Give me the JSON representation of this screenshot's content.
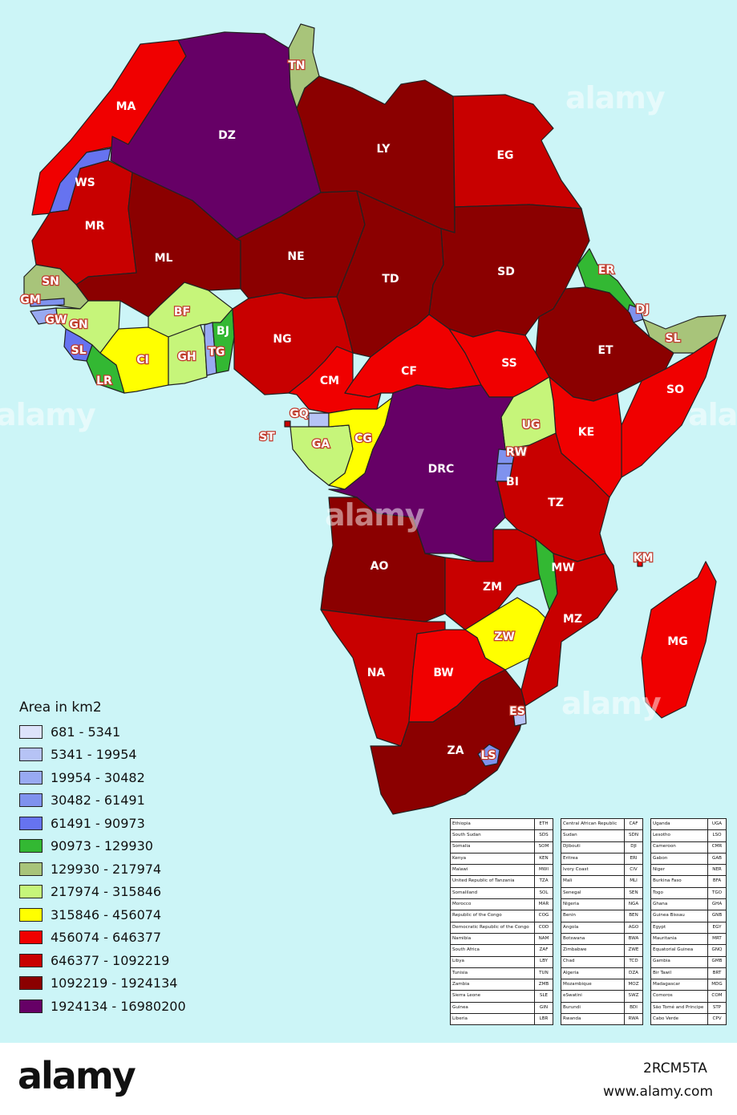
{
  "colors": {
    "sea": "#ccf5f7",
    "c1": "#dde3fb",
    "c2": "#b6c3f5",
    "c3": "#98aaf2",
    "c4": "#7f92ee",
    "c5": "#6673f0",
    "c6": "#33b833",
    "c7": "#a8c47a",
    "c8": "#c6f57a",
    "c9": "#ffff00",
    "c10": "#f00000",
    "c11": "#c80000",
    "c12": "#8b0000",
    "c13": "#660066"
  },
  "legend": {
    "title": "Area in km2",
    "classes": [
      {
        "label": "681 - 5341",
        "color": "#dde3fb"
      },
      {
        "label": "5341 - 19954",
        "color": "#b6c3f5"
      },
      {
        "label": "19954 - 30482",
        "color": "#98aaf2"
      },
      {
        "label": "30482 - 61491",
        "color": "#7f92ee"
      },
      {
        "label": "61491 - 90973",
        "color": "#6673f0"
      },
      {
        "label": "90973 - 129930",
        "color": "#33b833"
      },
      {
        "label": "129930 - 217974",
        "color": "#a8c47a"
      },
      {
        "label": "217974 - 315846",
        "color": "#c6f57a"
      },
      {
        "label": "315846 - 456074",
        "color": "#ffff00"
      },
      {
        "label": "456074 - 646377",
        "color": "#f00000"
      },
      {
        "label": "646377 - 1092219",
        "color": "#c80000"
      },
      {
        "label": "1092219 - 1924134",
        "color": "#8b0000"
      },
      {
        "label": "1924134 - 16980200",
        "color": "#660066"
      }
    ]
  },
  "country_labels": {
    "MA": "MA",
    "DZ": "DZ",
    "TN": "TN",
    "LY": "LY",
    "EG": "EG",
    "WS": "WS",
    "MR": "MR",
    "ML": "ML",
    "NE": "NE",
    "TD": "TD",
    "SD": "SD",
    "ER": "ER",
    "DJ": "DJ",
    "SN": "SN",
    "GM": "GM",
    "GW": "GW",
    "GN": "GN",
    "BF": "BF",
    "BJ": "BJ",
    "TG": "TG",
    "SL": "SL",
    "CI": "CI",
    "GH": "GH",
    "LR": "LR",
    "NG": "NG",
    "ET": "ET",
    "SLD": "SL",
    "SS": "SS",
    "CF": "CF",
    "CM": "CM",
    "SO": "SO",
    "GQ": "GQ",
    "ST": "ST",
    "GA": "GA",
    "CG": "CG",
    "UG": "UG",
    "KE": "KE",
    "DRC": "DRC",
    "RW": "RW",
    "BI": "BI",
    "TZ": "TZ",
    "KM": "KM",
    "AO": "AO",
    "ZM": "ZM",
    "MW": "MW",
    "MZ": "MZ",
    "MG": "MG",
    "ZW": "ZW",
    "NA": "NA",
    "BW": "BW",
    "ES": "ES",
    "ZA": "ZA",
    "LS": "LS"
  },
  "lookup_tables": [
    [
      [
        "Ethiopia",
        "ETH"
      ],
      [
        "South Sudan",
        "SDS"
      ],
      [
        "Somalia",
        "SOM"
      ],
      [
        "Kenya",
        "KEN"
      ],
      [
        "Malawi",
        "MWI"
      ],
      [
        "United Republic of Tanzania",
        "TZA"
      ],
      [
        "Somaliland",
        "SOL"
      ],
      [
        "Morocco",
        "MAR"
      ],
      [
        "Republic of the Congo",
        "COG"
      ],
      [
        "Democratic Republic of the Congo",
        "COD"
      ],
      [
        "Namibia",
        "NAM"
      ],
      [
        "South Africa",
        "ZAF"
      ],
      [
        "Libya",
        "LBY"
      ],
      [
        "Tunisia",
        "TUN"
      ],
      [
        "Zambia",
        "ZMB"
      ],
      [
        "Sierra Leone",
        "SLE"
      ],
      [
        "Guinea",
        "GIN"
      ],
      [
        "Liberia",
        "LBR"
      ]
    ],
    [
      [
        "Central African Republic",
        "CAF"
      ],
      [
        "Sudan",
        "SDN"
      ],
      [
        "Djibouti",
        "DJI"
      ],
      [
        "Eritrea",
        "ERI"
      ],
      [
        "Ivory Coast",
        "CIV"
      ],
      [
        "Mali",
        "MLI"
      ],
      [
        "Senegal",
        "SEN"
      ],
      [
        "Nigeria",
        "NGA"
      ],
      [
        "Benin",
        "BEN"
      ],
      [
        "Angola",
        "AGO"
      ],
      [
        "Botswana",
        "BWA"
      ],
      [
        "Zimbabwe",
        "ZWE"
      ],
      [
        "Chad",
        "TCD"
      ],
      [
        "Algeria",
        "DZA"
      ],
      [
        "Mozambique",
        "MOZ"
      ],
      [
        "eSwatini",
        "SWZ"
      ],
      [
        "Burundi",
        "BDI"
      ],
      [
        "Rwanda",
        "RWA"
      ]
    ],
    [
      [
        "Uganda",
        "UGA"
      ],
      [
        "Lesotho",
        "LSO"
      ],
      [
        "Cameroon",
        "CMR"
      ],
      [
        "Gabon",
        "GAB"
      ],
      [
        "Niger",
        "NER"
      ],
      [
        "Burkina Faso",
        "BFA"
      ],
      [
        "Togo",
        "TGO"
      ],
      [
        "Ghana",
        "GHA"
      ],
      [
        "Guinea Bissau",
        "GNB"
      ],
      [
        "Egypt",
        "EGY"
      ],
      [
        "Mauritania",
        "MRT"
      ],
      [
        "Equatorial Guinea",
        "GNQ"
      ],
      [
        "Gambia",
        "GMB"
      ],
      [
        "Bir Tawil",
        "BRT"
      ],
      [
        "Madagascar",
        "MDG"
      ],
      [
        "Comoros",
        "COM"
      ],
      [
        "São Tomé and Principe",
        "STP"
      ],
      [
        "Cabo Verde",
        "CPV"
      ]
    ]
  ],
  "watermark": "alamy",
  "footer": {
    "brand": "alamy",
    "stock_id": "2RCM5TA",
    "site": "www.alamy.com"
  }
}
